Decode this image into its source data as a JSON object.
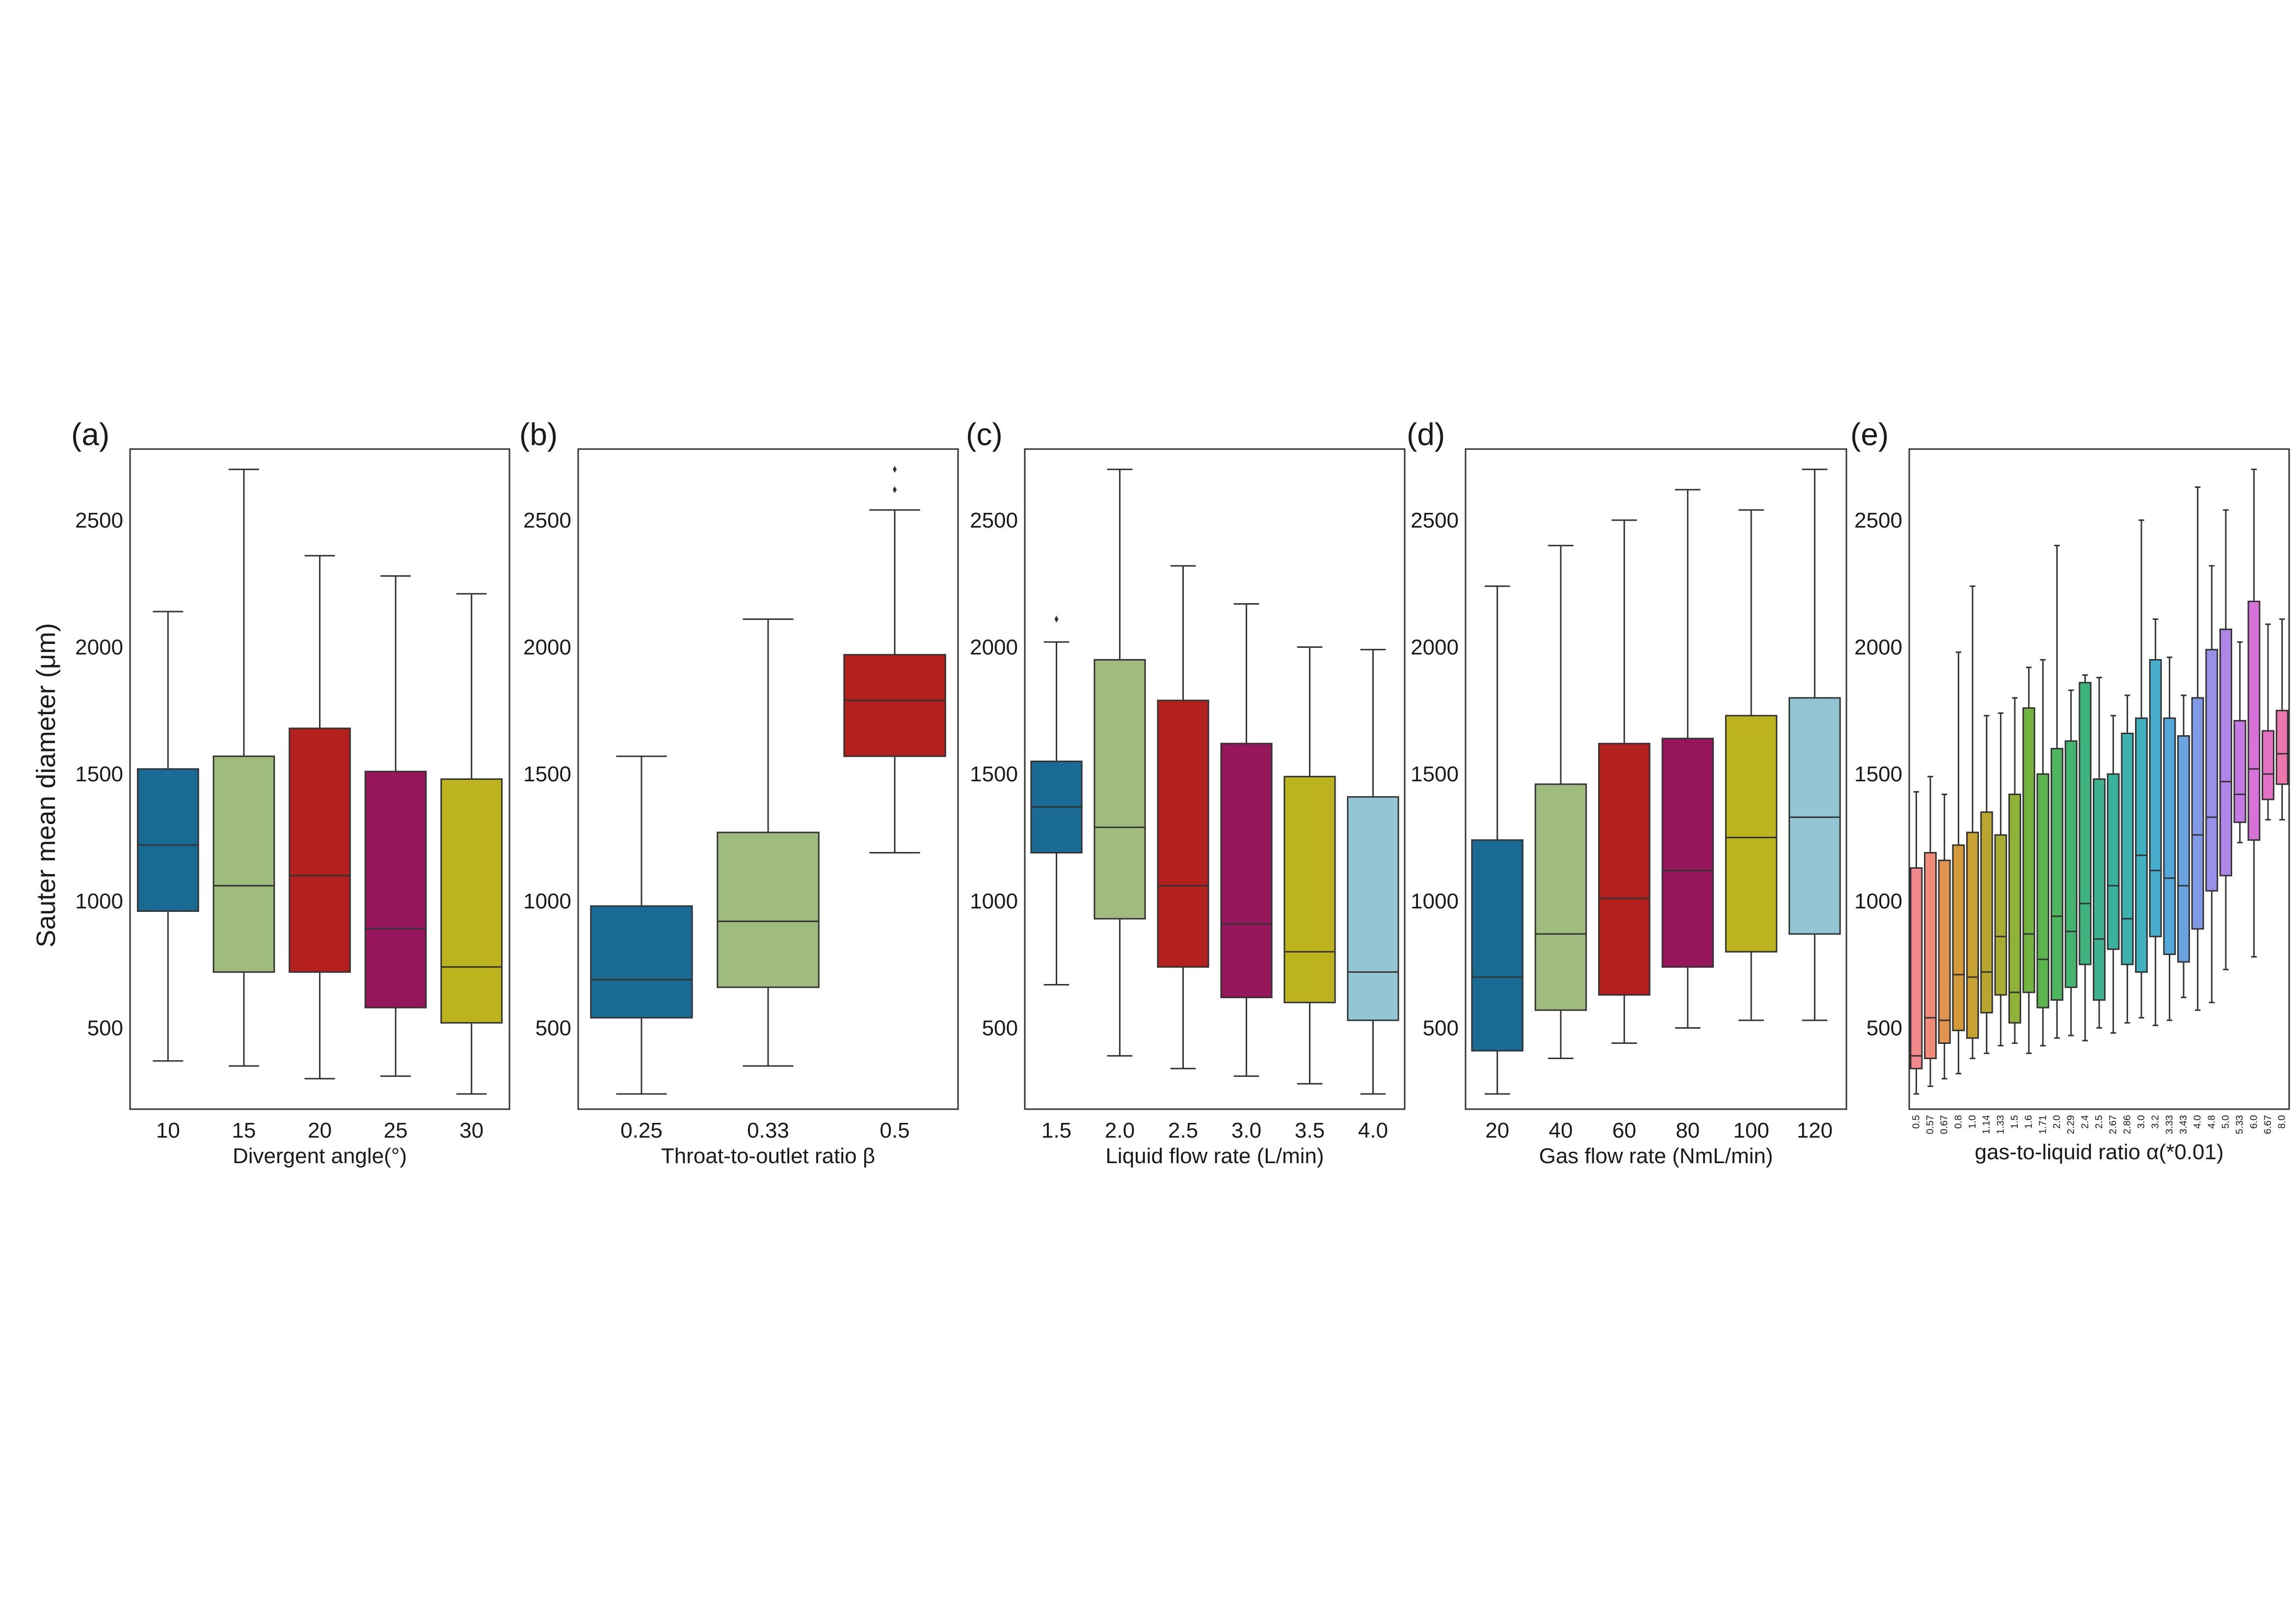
{
  "figure": {
    "ylabel": "Sauter mean diameter (μm)"
  },
  "chart_data": [
    {
      "type": "box",
      "panel_label": "(a)",
      "xlabel": "Divergent angle(°)",
      "ylabel": "Sauter mean diameter (μm)",
      "ylim": [
        180,
        2780
      ],
      "yticks": [
        500,
        1000,
        1500,
        2000,
        2500
      ],
      "categories": [
        "10",
        "15",
        "20",
        "25",
        "30"
      ],
      "boxes": [
        {
          "category": "10",
          "min": 370,
          "q1": 960,
          "median": 1220,
          "q3": 1520,
          "max": 2140,
          "color": "#1a6b93"
        },
        {
          "category": "15",
          "min": 350,
          "q1": 720,
          "median": 1060,
          "q3": 1570,
          "max": 2700,
          "color": "#a0bb7e"
        },
        {
          "category": "20",
          "min": 300,
          "q1": 720,
          "median": 1100,
          "q3": 1680,
          "max": 2360,
          "color": "#b3201e"
        },
        {
          "category": "25",
          "min": 310,
          "q1": 580,
          "median": 890,
          "q3": 1510,
          "max": 2280,
          "color": "#95165a"
        },
        {
          "category": "30",
          "min": 240,
          "q1": 520,
          "median": 740,
          "q3": 1480,
          "max": 2210,
          "color": "#bdb31e"
        }
      ]
    },
    {
      "type": "box",
      "panel_label": "(b)",
      "xlabel": "Throat-to-outlet ratio β",
      "ylim": [
        180,
        2780
      ],
      "yticks": [
        500,
        1000,
        1500,
        2000,
        2500
      ],
      "categories": [
        "0.25",
        "0.33",
        "0.5"
      ],
      "boxes": [
        {
          "category": "0.25",
          "min": 240,
          "q1": 540,
          "median": 690,
          "q3": 980,
          "max": 1570,
          "color": "#1a6b93"
        },
        {
          "category": "0.33",
          "min": 350,
          "q1": 660,
          "median": 920,
          "q3": 1270,
          "max": 2110,
          "color": "#a0bb7e"
        },
        {
          "category": "0.5",
          "min": 1190,
          "q1": 1570,
          "median": 1790,
          "q3": 1970,
          "max": 2540,
          "color": "#b3201e",
          "outliers": [
            2620,
            2700
          ]
        }
      ]
    },
    {
      "type": "box",
      "panel_label": "(c)",
      "xlabel": "Liquid flow rate (L/min)",
      "ylim": [
        180,
        2780
      ],
      "yticks": [
        500,
        1000,
        1500,
        2000,
        2500
      ],
      "categories": [
        "1.5",
        "2.0",
        "2.5",
        "3.0",
        "3.5",
        "4.0"
      ],
      "boxes": [
        {
          "category": "1.5",
          "min": 670,
          "q1": 1190,
          "median": 1370,
          "q3": 1550,
          "max": 2020,
          "color": "#1a6b93",
          "outliers": [
            2110
          ]
        },
        {
          "category": "2.0",
          "min": 390,
          "q1": 930,
          "median": 1290,
          "q3": 1950,
          "max": 2700,
          "color": "#a0bb7e"
        },
        {
          "category": "2.5",
          "min": 340,
          "q1": 740,
          "median": 1060,
          "q3": 1790,
          "max": 2320,
          "color": "#b3201e"
        },
        {
          "category": "3.0",
          "min": 310,
          "q1": 620,
          "median": 910,
          "q3": 1620,
          "max": 2170,
          "color": "#95165a"
        },
        {
          "category": "3.5",
          "min": 280,
          "q1": 600,
          "median": 800,
          "q3": 1490,
          "max": 2000,
          "color": "#bdb31e"
        },
        {
          "category": "4.0",
          "min": 240,
          "q1": 530,
          "median": 720,
          "q3": 1410,
          "max": 1990,
          "color": "#93c6d3"
        }
      ]
    },
    {
      "type": "box",
      "panel_label": "(d)",
      "xlabel": "Gas flow rate (NmL/min)",
      "ylim": [
        180,
        2780
      ],
      "yticks": [
        500,
        1000,
        1500,
        2000,
        2500
      ],
      "categories": [
        "20",
        "40",
        "60",
        "80",
        "100",
        "120"
      ],
      "boxes": [
        {
          "category": "20",
          "min": 240,
          "q1": 410,
          "median": 700,
          "q3": 1240,
          "max": 2240,
          "color": "#1a6b93"
        },
        {
          "category": "40",
          "min": 380,
          "q1": 570,
          "median": 870,
          "q3": 1460,
          "max": 2400,
          "color": "#a0bb7e"
        },
        {
          "category": "60",
          "min": 440,
          "q1": 630,
          "median": 1010,
          "q3": 1620,
          "max": 2500,
          "color": "#b3201e"
        },
        {
          "category": "80",
          "min": 500,
          "q1": 740,
          "median": 1120,
          "q3": 1640,
          "max": 2620,
          "color": "#95165a"
        },
        {
          "category": "100",
          "min": 530,
          "q1": 800,
          "median": 1250,
          "q3": 1730,
          "max": 2540,
          "color": "#bdb31e"
        },
        {
          "category": "120",
          "min": 530,
          "q1": 870,
          "median": 1330,
          "q3": 1800,
          "max": 2700,
          "color": "#93c6d3"
        }
      ]
    },
    {
      "type": "box",
      "panel_label": "(e)",
      "xlabel": "gas-to-liquid ratio α(*0.01)",
      "ylim": [
        180,
        2780
      ],
      "yticks": [
        500,
        1000,
        1500,
        2000,
        2500
      ],
      "categories": [
        "0.5",
        "0.57",
        "0.67",
        "0.8",
        "1.0",
        "1.14",
        "1.33",
        "1.5",
        "1.6",
        "1.71",
        "2.0",
        "2.29",
        "2.4",
        "2.5",
        "2.67",
        "2.86",
        "3.0",
        "3.2",
        "3.33",
        "3.43",
        "4.0",
        "4.8",
        "5.0",
        "5.33",
        "6.0",
        "6.67",
        "8.0"
      ],
      "boxes": [
        {
          "category": "0.5",
          "min": 240,
          "q1": 340,
          "median": 390,
          "q3": 1130,
          "max": 1430,
          "color": "#f2888a"
        },
        {
          "category": "0.57",
          "min": 270,
          "q1": 380,
          "median": 540,
          "q3": 1190,
          "max": 1490,
          "color": "#ef8b79"
        },
        {
          "category": "0.67",
          "min": 300,
          "q1": 440,
          "median": 530,
          "q3": 1160,
          "max": 1420,
          "color": "#e19450"
        },
        {
          "category": "0.8",
          "min": 320,
          "q1": 490,
          "median": 710,
          "q3": 1220,
          "max": 1980,
          "color": "#d59b3a"
        },
        {
          "category": "1.0",
          "min": 380,
          "q1": 460,
          "median": 700,
          "q3": 1270,
          "max": 2240,
          "color": "#c7a230"
        },
        {
          "category": "1.14",
          "min": 400,
          "q1": 560,
          "median": 720,
          "q3": 1350,
          "max": 1730,
          "color": "#b7a730"
        },
        {
          "category": "1.33",
          "min": 430,
          "q1": 630,
          "median": 860,
          "q3": 1260,
          "max": 1740,
          "color": "#a6ad32"
        },
        {
          "category": "1.5",
          "min": 440,
          "q1": 520,
          "median": 640,
          "q3": 1420,
          "max": 1800,
          "color": "#8fb237"
        },
        {
          "category": "1.6",
          "min": 400,
          "q1": 640,
          "median": 870,
          "q3": 1760,
          "max": 1920,
          "color": "#73b33f"
        },
        {
          "category": "1.71",
          "min": 430,
          "q1": 580,
          "median": 770,
          "q3": 1500,
          "max": 1950,
          "color": "#5bb44e"
        },
        {
          "category": "2.0",
          "min": 460,
          "q1": 610,
          "median": 940,
          "q3": 1600,
          "max": 2400,
          "color": "#4cb55e"
        },
        {
          "category": "2.29",
          "min": 470,
          "q1": 660,
          "median": 880,
          "q3": 1630,
          "max": 1830,
          "color": "#44b46e"
        },
        {
          "category": "2.4",
          "min": 450,
          "q1": 750,
          "median": 990,
          "q3": 1860,
          "max": 1890,
          "color": "#3fb47e"
        },
        {
          "category": "2.5",
          "min": 500,
          "q1": 610,
          "median": 850,
          "q3": 1480,
          "max": 1880,
          "color": "#3cb38e"
        },
        {
          "category": "2.67",
          "min": 480,
          "q1": 810,
          "median": 1060,
          "q3": 1500,
          "max": 1730,
          "color": "#3bb29d"
        },
        {
          "category": "2.86",
          "min": 520,
          "q1": 750,
          "median": 930,
          "q3": 1660,
          "max": 1810,
          "color": "#3cb1ad"
        },
        {
          "category": "3.0",
          "min": 540,
          "q1": 720,
          "median": 1180,
          "q3": 1720,
          "max": 2500,
          "color": "#3fb0bd"
        },
        {
          "category": "3.2",
          "min": 510,
          "q1": 860,
          "median": 1120,
          "q3": 1950,
          "max": 2110,
          "color": "#46aecc"
        },
        {
          "category": "3.33",
          "min": 530,
          "q1": 790,
          "median": 1090,
          "q3": 1720,
          "max": 1960,
          "color": "#55a9d8"
        },
        {
          "category": "3.43",
          "min": 620,
          "q1": 760,
          "median": 1060,
          "q3": 1650,
          "max": 1810,
          "color": "#6aa3e0"
        },
        {
          "category": "4.0",
          "min": 570,
          "q1": 890,
          "median": 1260,
          "q3": 1800,
          "max": 2630,
          "color": "#809ae6"
        },
        {
          "category": "4.8",
          "min": 600,
          "q1": 1040,
          "median": 1330,
          "q3": 1990,
          "max": 2320,
          "color": "#9890e9"
        },
        {
          "category": "5.0",
          "min": 730,
          "q1": 1100,
          "median": 1470,
          "q3": 2070,
          "max": 2540,
          "color": "#b085e8"
        },
        {
          "category": "5.33",
          "min": 1230,
          "q1": 1310,
          "median": 1420,
          "q3": 1710,
          "max": 2020,
          "color": "#c47ae2"
        },
        {
          "category": "6.0",
          "min": 780,
          "q1": 1240,
          "median": 1520,
          "q3": 2180,
          "max": 2700,
          "color": "#d672d8"
        },
        {
          "category": "6.67",
          "min": 1320,
          "q1": 1400,
          "median": 1500,
          "q3": 1670,
          "max": 2090,
          "color": "#e372c4"
        },
        {
          "category": "8.0",
          "min": 1320,
          "q1": 1460,
          "median": 1580,
          "q3": 1750,
          "max": 2110,
          "color": "#ea78ae"
        }
      ]
    }
  ]
}
